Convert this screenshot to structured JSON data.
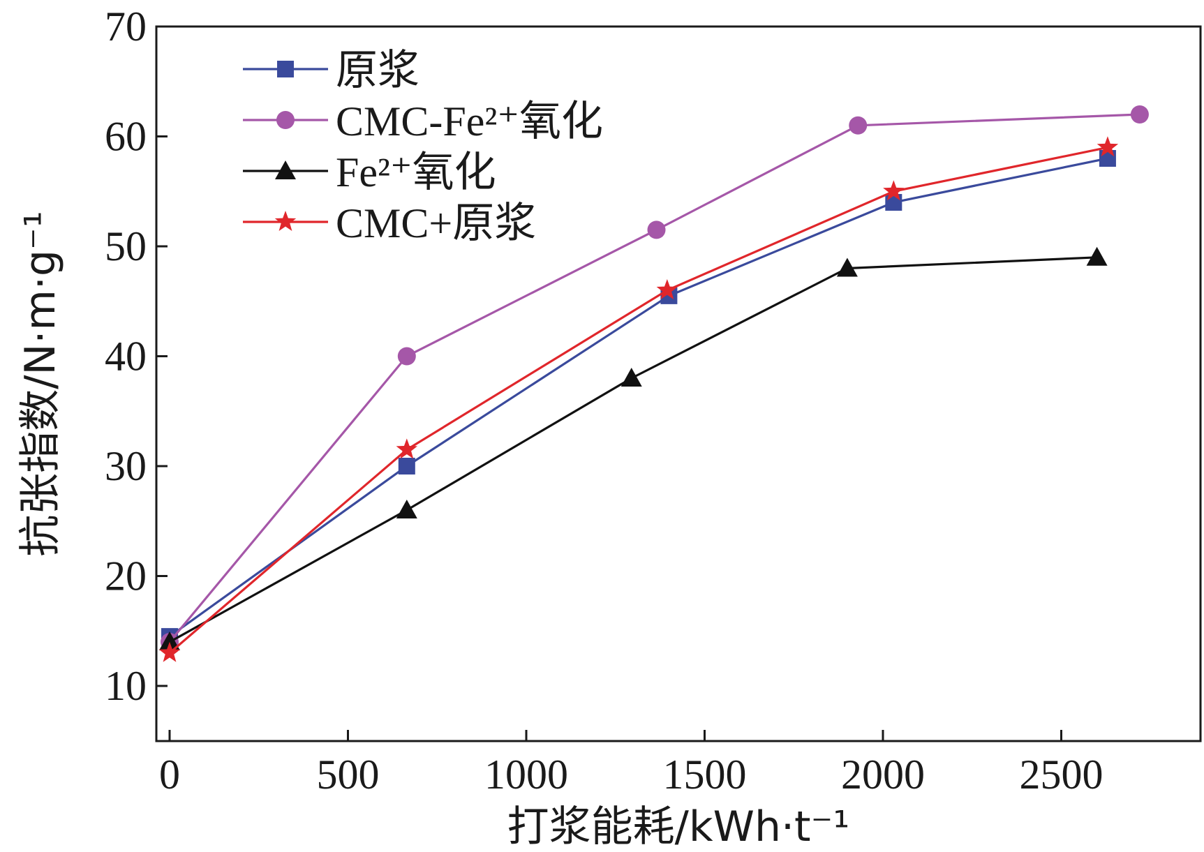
{
  "chart_data": {
    "type": "line",
    "xlabel": "打浆能耗/kWh·t⁻¹",
    "ylabel": "抗张指数/N·m·g⁻¹",
    "xlim": [
      0,
      2900
    ],
    "ylim": [
      5,
      70
    ],
    "xticks": [
      0,
      500,
      1000,
      1500,
      2000,
      2500
    ],
    "yticks": [
      10,
      20,
      30,
      40,
      50,
      60,
      70
    ],
    "grid": false,
    "legend_position": "top-left",
    "series": [
      {
        "name": "原浆",
        "marker": "square",
        "color": "#3a4a9c",
        "points": [
          [
            0,
            14.5
          ],
          [
            665,
            30
          ],
          [
            1400,
            45.5
          ],
          [
            2030,
            54
          ],
          [
            2630,
            58
          ]
        ]
      },
      {
        "name": "CMC-Fe²⁺氧化",
        "marker": "circle",
        "color": "#a557a8",
        "points": [
          [
            0,
            14
          ],
          [
            665,
            40
          ],
          [
            1365,
            51.5
          ],
          [
            1930,
            61
          ],
          [
            2720,
            62
          ]
        ]
      },
      {
        "name": "Fe²⁺氧化",
        "marker": "triangle",
        "color": "#111111",
        "points": [
          [
            0,
            14
          ],
          [
            665,
            26
          ],
          [
            1295,
            38
          ],
          [
            1900,
            48
          ],
          [
            2600,
            49
          ]
        ]
      },
      {
        "name": "CMC+原浆",
        "marker": "star",
        "color": "#e0262b",
        "points": [
          [
            0,
            13
          ],
          [
            665,
            31.5
          ],
          [
            1395,
            46
          ],
          [
            2030,
            55
          ],
          [
            2630,
            59
          ]
        ]
      }
    ]
  }
}
